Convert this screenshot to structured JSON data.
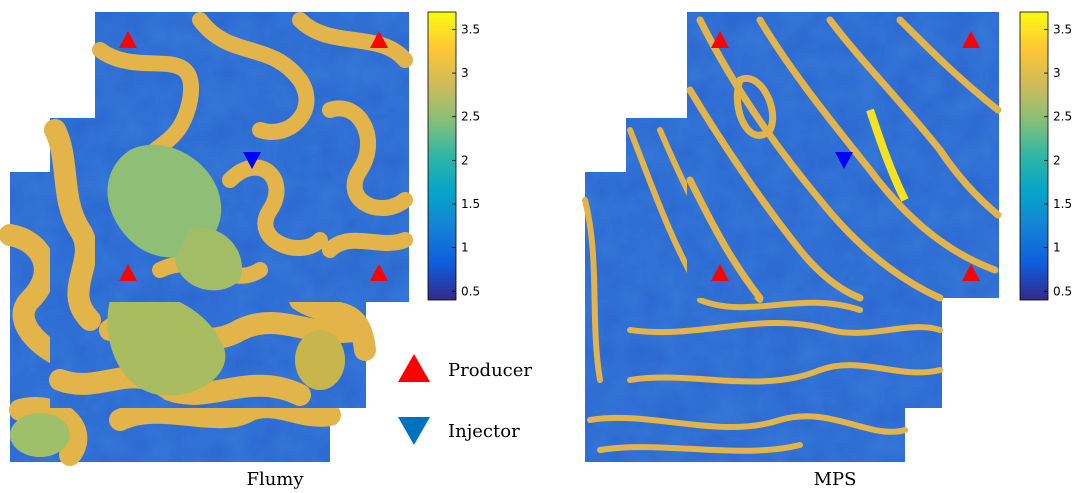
{
  "panels": [
    {
      "caption": "Flumy",
      "style": "flumy"
    },
    {
      "caption": "MPS",
      "style": "mps"
    }
  ],
  "colorbar": {
    "ticks": [
      "3.5",
      "3",
      "2.5",
      "2",
      "1.5",
      "1",
      "0.5"
    ],
    "range": [
      0.4,
      3.7
    ],
    "colors": [
      "#352a87",
      "#0f5cdd",
      "#1481d6",
      "#06a4ca",
      "#2eb7a4",
      "#87bf77",
      "#d1bb59",
      "#fec832",
      "#f9fb0e"
    ]
  },
  "legend": {
    "producer": {
      "label": "Producer",
      "color": "#ff0000",
      "icon": "red-up-triangle"
    },
    "injector": {
      "label": "Injector",
      "color": "#0072bd",
      "icon": "blue-down-triangle"
    }
  },
  "markers": {
    "producer_color": "#ff0000",
    "injector_color": "#0000ff"
  },
  "background_color": "#2a6fd6",
  "channel_color": "#e9b44a"
}
